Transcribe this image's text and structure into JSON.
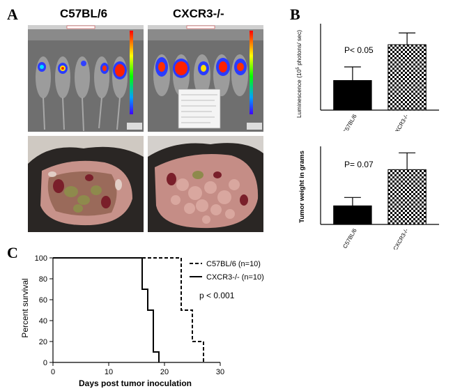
{
  "panel_labels": {
    "a": "A",
    "b": "B",
    "c": "C"
  },
  "panel_a": {
    "strain_left": "C57BL/6",
    "strain_right": "CXCR3-/-",
    "images": {
      "imaging_left": "bioluminescence imaging of C57BL/6 mice",
      "imaging_right": "bioluminescence imaging of CXCR3-/- mice",
      "dissection_left": "dissected C57BL/6 mouse",
      "dissection_right": "dissected CXCR3-/- mouse"
    }
  },
  "chart_data": [
    {
      "type": "bar",
      "panel": "B-top",
      "categories": [
        "C57BL/6",
        "CXCR3-/-"
      ],
      "values": [
        2.4,
        5.3
      ],
      "errors": [
        1.1,
        0.95
      ],
      "ylabel_prefix": "Luminescence (10",
      "ylabel_exp": "5",
      "ylabel_suffix": " photons/ sec)",
      "ylim": [
        0,
        7
      ],
      "annotation": "P< 0.05",
      "fills": [
        "solid-black",
        "checkerboard"
      ]
    },
    {
      "type": "bar",
      "panel": "B-bottom",
      "categories": [
        "C57BL/6",
        "CXCR3-/-"
      ],
      "values": [
        1.0,
        2.95
      ],
      "errors": [
        0.45,
        0.9
      ],
      "ylabel": "Tumor weight in grams",
      "ylim": [
        0,
        4.2
      ],
      "annotation": "P= 0.07",
      "fills": [
        "solid-black",
        "checkerboard"
      ]
    },
    {
      "type": "line",
      "panel": "C",
      "xlabel": "Days post tumor inoculation",
      "ylabel": "Percent survival",
      "xlim": [
        0,
        30
      ],
      "ylim": [
        0,
        100
      ],
      "xticks": [
        0,
        10,
        20,
        30
      ],
      "yticks": [
        0,
        20,
        40,
        60,
        80,
        100
      ],
      "series": [
        {
          "name": "C57BL/6 (n=10)",
          "style": "dashed",
          "steps": [
            [
              0,
              100
            ],
            [
              23,
              100
            ],
            [
              23,
              50
            ],
            [
              25,
              50
            ],
            [
              25,
              20
            ],
            [
              27,
              20
            ],
            [
              27,
              0
            ]
          ]
        },
        {
          "name": "CXCR3-/- (n=10)",
          "style": "solid",
          "steps": [
            [
              0,
              100
            ],
            [
              16,
              100
            ],
            [
              16,
              70
            ],
            [
              17,
              70
            ],
            [
              17,
              50
            ],
            [
              18,
              50
            ],
            [
              18,
              10
            ],
            [
              19,
              10
            ],
            [
              19,
              0
            ]
          ]
        }
      ],
      "annotation": "p < 0.001"
    }
  ]
}
